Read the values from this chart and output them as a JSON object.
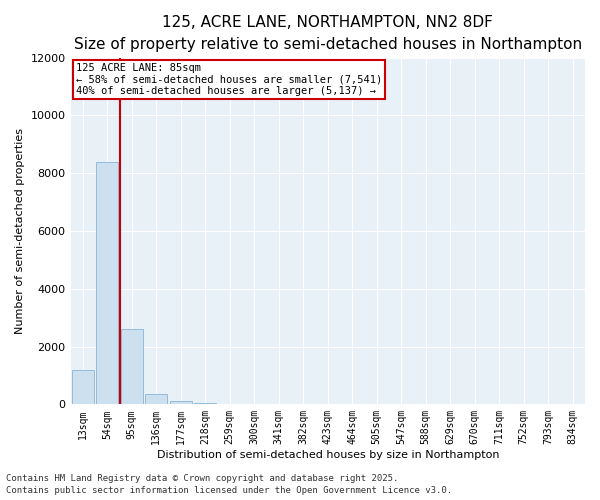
{
  "title_line1": "125, ACRE LANE, NORTHAMPTON, NN2 8DF",
  "title_line2": "Size of property relative to semi-detached houses in Northampton",
  "xlabel": "Distribution of semi-detached houses by size in Northampton",
  "ylabel": "Number of semi-detached properties",
  "categories": [
    "13sqm",
    "54sqm",
    "95sqm",
    "136sqm",
    "177sqm",
    "218sqm",
    "259sqm",
    "300sqm",
    "341sqm",
    "382sqm",
    "423sqm",
    "464sqm",
    "505sqm",
    "547sqm",
    "588sqm",
    "629sqm",
    "670sqm",
    "711sqm",
    "752sqm",
    "793sqm",
    "834sqm"
  ],
  "values": [
    1200,
    8400,
    2600,
    350,
    100,
    45,
    0,
    0,
    0,
    0,
    0,
    0,
    0,
    0,
    0,
    0,
    0,
    0,
    0,
    0,
    0
  ],
  "bar_color": "#cce0f0",
  "bar_edge_color": "#8ab4d4",
  "vline_color": "#cc0000",
  "vline_pos": 1.5,
  "annotation_title": "125 ACRE LANE: 85sqm",
  "annotation_line1": "← 58% of semi-detached houses are smaller (7,541)",
  "annotation_line2": "40% of semi-detached houses are larger (5,137) →",
  "annotation_box_color": "#ffffff",
  "annotation_border_color": "#cc0000",
  "ylim": [
    0,
    12000
  ],
  "yticks": [
    0,
    2000,
    4000,
    6000,
    8000,
    10000,
    12000
  ],
  "background_color": "#e8f0f8",
  "footer_line1": "Contains HM Land Registry data © Crown copyright and database right 2025.",
  "footer_line2": "Contains public sector information licensed under the Open Government Licence v3.0.",
  "title_fontsize": 11,
  "subtitle_fontsize": 9,
  "axis_label_fontsize": 8,
  "tick_fontsize": 8,
  "footer_fontsize": 6.5,
  "annotation_fontsize": 7.5
}
